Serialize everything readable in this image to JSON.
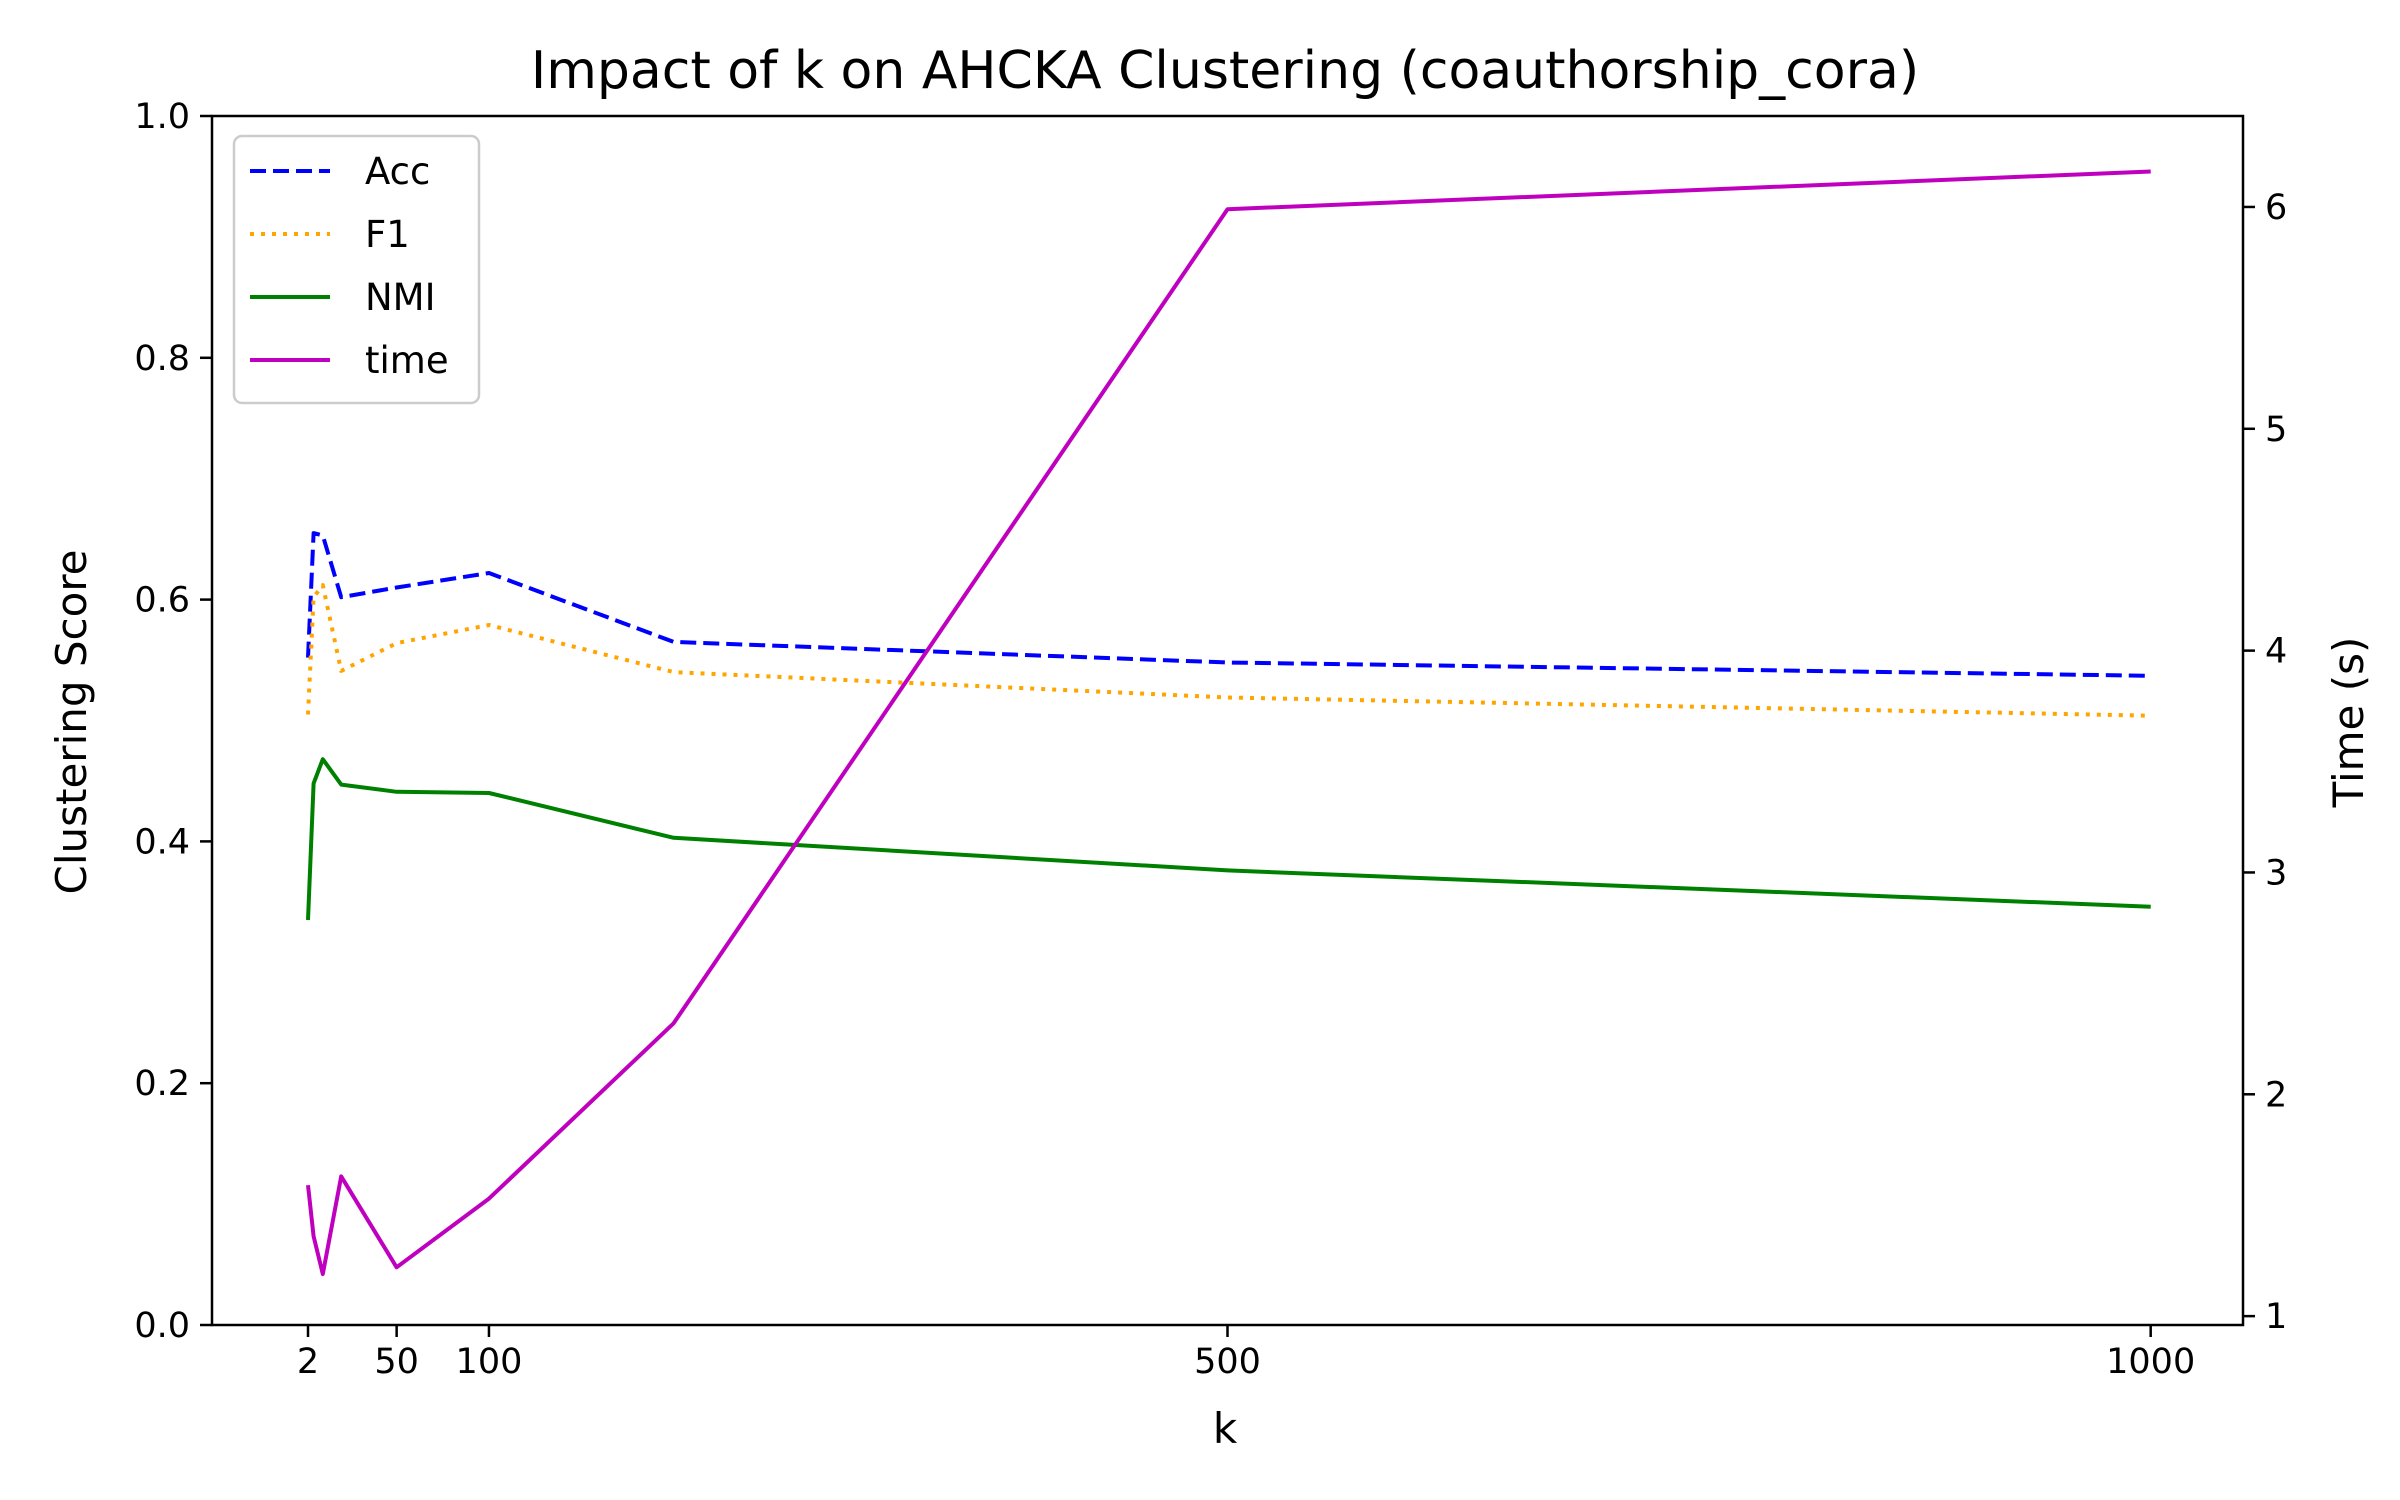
{
  "chart_data": {
    "type": "line",
    "title": "Impact of k on AHCKA Clustering (coauthorship_cora)",
    "xlabel": "k",
    "ylabel": "Clustering Score",
    "y2label": "Time (s)",
    "xlim": [
      -50,
      1050
    ],
    "ylim": [
      0.0,
      1.0
    ],
    "y2lim": [
      0.96,
      6.41
    ],
    "xticks": [
      2,
      50,
      100,
      500,
      1000
    ],
    "xtick_labels": [
      "2",
      "50",
      "100",
      "500",
      "1000"
    ],
    "yticks": [
      0.0,
      0.2,
      0.4,
      0.6,
      0.8,
      1.0
    ],
    "ytick_labels": [
      "0.0",
      "0.2",
      "0.4",
      "0.6",
      "0.8",
      "1.0"
    ],
    "y2ticks": [
      1,
      2,
      3,
      4,
      5,
      6
    ],
    "y2tick_labels": [
      "1",
      "2",
      "3",
      "4",
      "5",
      "6"
    ],
    "legend_position": "upper-left",
    "grid": false,
    "x": [
      2,
      5,
      10,
      20,
      50,
      100,
      200,
      500,
      1000
    ],
    "series": [
      {
        "name": "Acc",
        "axis": "left",
        "color": "#0000ff",
        "style": "dashed",
        "values": [
          0.552,
          0.655,
          0.653,
          0.602,
          0.61,
          0.622,
          0.565,
          0.548,
          0.537
        ]
      },
      {
        "name": "F1",
        "axis": "left",
        "color": "#ffa500",
        "style": "dotted",
        "values": [
          0.505,
          0.602,
          0.612,
          0.541,
          0.564,
          0.579,
          0.54,
          0.519,
          0.504
        ]
      },
      {
        "name": "NMI",
        "axis": "left",
        "color": "#008000",
        "style": "solid",
        "values": [
          0.335,
          0.448,
          0.468,
          0.447,
          0.441,
          0.44,
          0.403,
          0.376,
          0.346
        ]
      },
      {
        "name": "time",
        "axis": "right",
        "color": "#bf00bf",
        "style": "solid",
        "values": [
          1.59,
          1.36,
          1.19,
          1.63,
          1.22,
          1.53,
          2.32,
          5.99,
          6.16
        ]
      }
    ],
    "right_axis_color": "#bf00bf"
  }
}
